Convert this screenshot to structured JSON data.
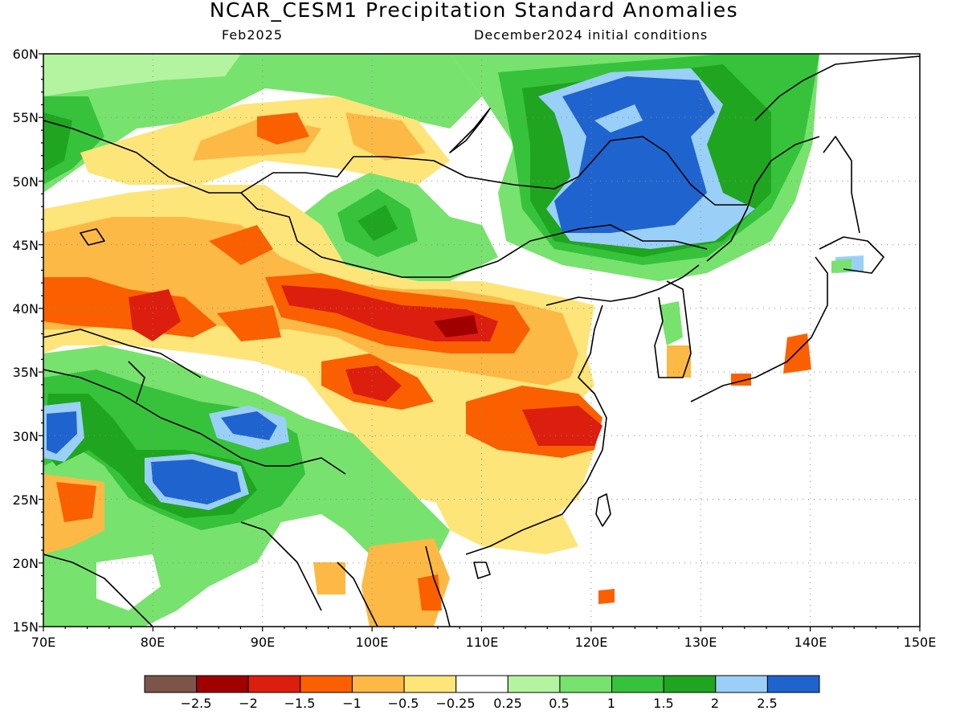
{
  "title": "NCAR_CESM1 Precipitation Standard Anomalies",
  "subtitle_left": "Feb2025",
  "subtitle_right": "December2024 initial conditions",
  "lat_labels": [
    "60N",
    "55N",
    "50N",
    "45N",
    "40N",
    "35N",
    "30N",
    "25N",
    "20N",
    "15N"
  ],
  "lon_labels": [
    "70E",
    "80E",
    "90E",
    "100E",
    "110E",
    "120E",
    "130E",
    "140E",
    "150E"
  ],
  "colorbar": {
    "colors": [
      "#7a5548",
      "#a00000",
      "#dc1e0e",
      "#fa6000",
      "#fdb945",
      "#fee57a",
      "#ffffff",
      "#b4f4a0",
      "#78e26e",
      "#37c23c",
      "#1fa51f",
      "#9ad0f8",
      "#1f63cf"
    ],
    "labels": [
      "−2.5",
      "−2",
      "−1.5",
      "−1",
      "−0.5",
      "−0.25",
      "0.25",
      "0.5",
      "1",
      "1.5",
      "2",
      "2.5"
    ]
  }
}
